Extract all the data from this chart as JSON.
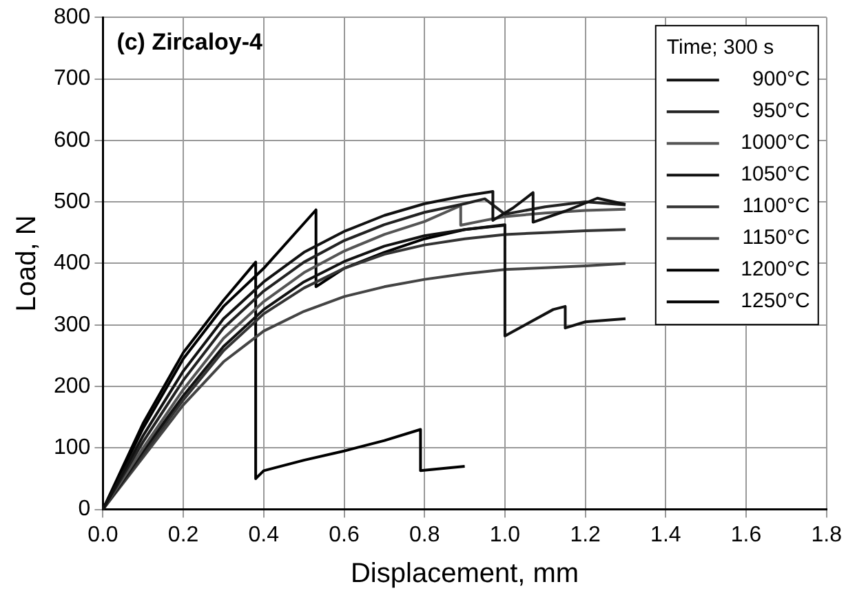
{
  "chart_data": {
    "type": "line",
    "title": "(c) Zircaloy-4",
    "xlabel": "Displacement, mm",
    "ylabel": "Load, N",
    "legend_title": "Time; 300 s",
    "legend": "top right",
    "grid": true,
    "line_style": "solid",
    "marker": "none",
    "xlim": [
      0,
      1.8
    ],
    "xticks": [
      {
        "value": 0,
        "label": "0.0"
      },
      0.2,
      0.4,
      0.6,
      0.8,
      {
        "value": 1,
        "label": "1.0"
      },
      1.2,
      1.4,
      1.6,
      1.8
    ],
    "ylim": [
      0,
      800
    ],
    "yticks": [
      0,
      100,
      200,
      300,
      400,
      500,
      600,
      700,
      800
    ],
    "series": [
      {
        "name": "900°C",
        "color": "#111111",
        "x": [
          0,
          0.1,
          0.2,
          0.3,
          0.4,
          0.5,
          0.6,
          0.7,
          0.8,
          0.9,
          0.97,
          0.97,
          1.02,
          1.07,
          1.07,
          1.15,
          1.23,
          1.3
        ],
        "values": [
          0,
          120,
          225,
          310,
          370,
          418,
          452,
          478,
          497,
          510,
          517,
          470,
          490,
          515,
          467,
          485,
          506,
          496
        ]
      },
      {
        "name": "950°C",
        "color": "#222222",
        "x": [
          0,
          0.1,
          0.2,
          0.3,
          0.4,
          0.5,
          0.6,
          0.7,
          0.8,
          0.9,
          0.95,
          1.0,
          1.1,
          1.2,
          1.3
        ],
        "values": [
          0,
          110,
          210,
          295,
          355,
          402,
          437,
          463,
          483,
          497,
          505,
          480,
          492,
          500,
          495
        ]
      },
      {
        "name": "1000°C",
        "color": "#555555",
        "x": [
          0,
          0.1,
          0.2,
          0.3,
          0.4,
          0.5,
          0.6,
          0.7,
          0.8,
          0.89,
          0.89,
          0.95,
          1.0,
          1.1,
          1.2,
          1.3
        ],
        "values": [
          0,
          100,
          195,
          278,
          338,
          385,
          420,
          447,
          468,
          494,
          462,
          470,
          476,
          482,
          486,
          488
        ]
      },
      {
        "name": "1050°C",
        "color": "#111111",
        "x": [
          0,
          0.1,
          0.2,
          0.3,
          0.4,
          0.5,
          0.6,
          0.7,
          0.8,
          0.9,
          1.0,
          1.0,
          1.05,
          1.12,
          1.15,
          1.15,
          1.2,
          1.3
        ],
        "values": [
          0,
          95,
          185,
          265,
          325,
          370,
          403,
          428,
          445,
          455,
          463,
          282,
          300,
          325,
          330,
          295,
          305,
          310
        ]
      },
      {
        "name": "1100°C",
        "color": "#333333",
        "x": [
          0,
          0.1,
          0.2,
          0.3,
          0.4,
          0.5,
          0.6,
          0.7,
          0.8,
          0.9,
          1.0,
          1.1,
          1.2,
          1.3
        ],
        "values": [
          0,
          90,
          178,
          258,
          318,
          360,
          392,
          415,
          430,
          440,
          447,
          450,
          453,
          455
        ]
      },
      {
        "name": "1150°C",
        "color": "#444444",
        "x": [
          0,
          0.1,
          0.2,
          0.3,
          0.4,
          0.5,
          0.6,
          0.7,
          0.8,
          0.9,
          1.0,
          1.1,
          1.2,
          1.3
        ],
        "values": [
          0,
          85,
          170,
          240,
          290,
          322,
          346,
          362,
          374,
          383,
          390,
          393,
          396,
          400
        ]
      },
      {
        "name": "1200°C",
        "color": "#000000",
        "x": [
          0,
          0.1,
          0.2,
          0.3,
          0.38,
          0.38,
          0.4,
          0.5,
          0.6,
          0.7,
          0.79,
          0.79,
          0.9
        ],
        "values": [
          0,
          140,
          255,
          340,
          402,
          50,
          63,
          80,
          95,
          112,
          130,
          63,
          70
        ]
      },
      {
        "name": "1250°C",
        "color": "#000000",
        "x": [
          0,
          0.1,
          0.2,
          0.3,
          0.4,
          0.53,
          0.53,
          0.56,
          0.6,
          0.7,
          0.8,
          0.9,
          1.0
        ],
        "values": [
          0,
          132,
          245,
          330,
          392,
          487,
          362,
          375,
          392,
          418,
          440,
          455,
          462
        ]
      }
    ]
  }
}
